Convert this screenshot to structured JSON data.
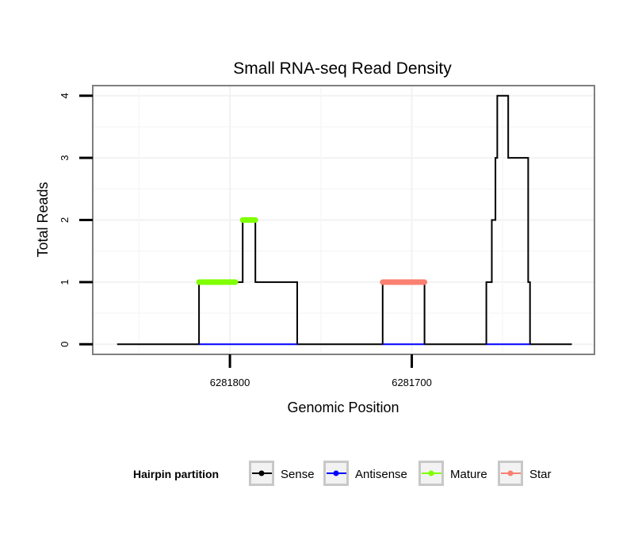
{
  "chart_data": {
    "type": "line",
    "title": "Small RNA-seq Read Density",
    "xlabel": "Genomic Position",
    "ylabel": "Total Reads",
    "x_reversed": true,
    "xlim": [
      6281875,
      6281600
    ],
    "ylim": [
      -0.15,
      4.15
    ],
    "x_ticks": [
      6281800,
      6281700
    ],
    "x_tick_labels": [
      "6281800",
      "6281700"
    ],
    "y_ticks": [
      0,
      1,
      2,
      3,
      4
    ],
    "y_tick_labels": [
      "0",
      "1",
      "2",
      "3",
      "4"
    ],
    "grid": true,
    "legend": {
      "title": "Hairpin partition",
      "position": "bottom",
      "entries": [
        {
          "label": "Sense",
          "color": "#000000"
        },
        {
          "label": "Antisense",
          "color": "#0000ff"
        },
        {
          "label": "Mature",
          "color": "#7fff00"
        },
        {
          "label": "Star",
          "color": "#fa8072"
        }
      ]
    },
    "series": [
      {
        "name": "Sense",
        "color": "#000000",
        "points": [
          [
            6281862,
            0
          ],
          [
            6281817,
            0
          ],
          [
            6281817,
            1
          ],
          [
            6281793,
            1
          ],
          [
            6281793,
            2
          ],
          [
            6281786,
            2
          ],
          [
            6281786,
            1
          ],
          [
            6281763,
            1
          ],
          [
            6281763,
            0
          ],
          [
            6281758,
            0
          ],
          [
            6281758,
            0
          ],
          [
            6281716,
            0
          ],
          [
            6281716,
            1
          ],
          [
            6281693,
            1
          ],
          [
            6281693,
            0
          ],
          [
            6281659,
            0
          ],
          [
            6281659,
            1
          ],
          [
            6281656,
            1
          ],
          [
            6281656,
            2
          ],
          [
            6281654,
            2
          ],
          [
            6281654,
            3
          ],
          [
            6281653,
            3
          ],
          [
            6281653,
            4
          ],
          [
            6281647,
            4
          ],
          [
            6281647,
            3
          ],
          [
            6281636,
            3
          ],
          [
            6281636,
            1
          ],
          [
            6281635,
            1
          ],
          [
            6281635,
            0
          ],
          [
            6281612,
            0
          ]
        ]
      },
      {
        "name": "Antisense",
        "color": "#0000ff",
        "segments": [
          [
            [
              6281817,
              0
            ],
            [
              6281763,
              0
            ]
          ],
          [
            [
              6281716,
              0
            ],
            [
              6281693,
              0
            ]
          ],
          [
            [
              6281659,
              0
            ],
            [
              6281635,
              0
            ]
          ]
        ]
      },
      {
        "name": "Mature",
        "color": "#7fff00",
        "segments": [
          [
            [
              6281817,
              1
            ],
            [
              6281797,
              1
            ]
          ],
          [
            [
              6281793,
              2
            ],
            [
              6281786,
              2
            ]
          ]
        ]
      },
      {
        "name": "Star",
        "color": "#fa8072",
        "segments": [
          [
            [
              6281716,
              1
            ],
            [
              6281693,
              1
            ]
          ]
        ]
      }
    ]
  }
}
